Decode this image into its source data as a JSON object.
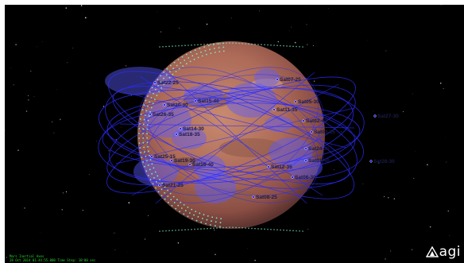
{
  "viewport": {
    "frame_label": "Mars Inertial Axes",
    "time_label": "28 Oct 2014 01:44:55.000    Time Step: 10.00 sec"
  },
  "logo": {
    "text": "agi"
  },
  "colors": {
    "space": "#000000",
    "mars": "#b5715c",
    "orbit": "#2b2bff",
    "coverage": "#5a5aff",
    "grid_points": "#7ee6c8",
    "hud_text": "#2bd12b"
  },
  "satellites": [
    {
      "id": "sat07-25",
      "label": "Sat07-25"
    },
    {
      "id": "sat22-25",
      "label": "Sat22-25"
    },
    {
      "id": "sat05-30",
      "label": "Sat05-30"
    },
    {
      "id": "sat15-40",
      "label": "Sat15-40"
    },
    {
      "id": "sat20-30",
      "label": "Sat20-30"
    },
    {
      "id": "sat11-35",
      "label": "Sat11-35"
    },
    {
      "id": "sat26-35",
      "label": "Sat26-35"
    },
    {
      "id": "sat02-40",
      "label": "Sat02-40"
    },
    {
      "id": "sat27-30",
      "label": "Sat27-30"
    },
    {
      "id": "sat14-30",
      "label": "Sat14-30"
    },
    {
      "id": "sat03-35",
      "label": "Sat03-35"
    },
    {
      "id": "sat18-35",
      "label": "Sat18-35"
    },
    {
      "id": "sat24-35",
      "label": "Sat24-35"
    },
    {
      "id": "sat25-15",
      "label": "Sat25-15"
    },
    {
      "id": "sat01-40",
      "label": "Sat01-40"
    },
    {
      "id": "sat19-30",
      "label": "Sat19-30"
    },
    {
      "id": "sat28-30",
      "label": "Sat28-30"
    },
    {
      "id": "sat16-40",
      "label": "Sat16-40"
    },
    {
      "id": "sat12-35",
      "label": "Sat12-35"
    },
    {
      "id": "sat06-30",
      "label": "Sat06-30"
    },
    {
      "id": "sat21-25",
      "label": "Sat21-25"
    },
    {
      "id": "sat08-25",
      "label": "Sat08-25"
    }
  ]
}
